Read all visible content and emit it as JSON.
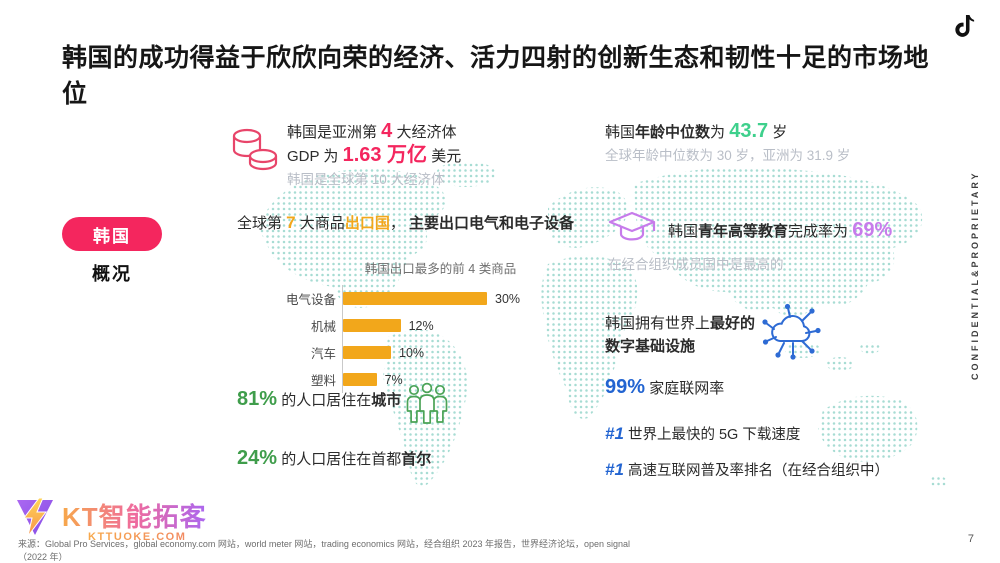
{
  "colors": {
    "pink": "#F4265E",
    "yellow": "#F2A71B",
    "mint": "#3ED08C",
    "green": "#3F9D4B",
    "purple": "#C77BEB",
    "blue": "#2264D1",
    "map-dot": "#a7dcd3"
  },
  "slide": {
    "title": "韩国的成功得益于欣欣向荣的经济、活力四射的创新生态和韧性十足的市场地位",
    "confidential": "CONFIDENTIAL&PROPRIETARY",
    "page_number": "7",
    "source": "来源：Global Pro Services，global economy.com 网站，world meter 网站，trading economics 网站，经合组织 2023 年报告，世界经济论坛，open signal（2022 年）"
  },
  "sidebar": {
    "tag": "韩国",
    "subtitle": "概况"
  },
  "economy": {
    "line1_pre": "韩国是亚洲第 ",
    "line1_hl": "4",
    "line1_post": " 大经济体",
    "line2_pre": "GDP 为 ",
    "line2_hl": "1.63 万亿",
    "line2_post": " 美元",
    "line3": "韩国是全球第 10 大经济体"
  },
  "age": {
    "pre": "韩国",
    "bold": "年龄中位数",
    "mid": "为 ",
    "hl": "43.7",
    "post": " 岁",
    "sub": "全球年龄中位数为 30 岁，亚洲为 31.9 岁"
  },
  "export_line": {
    "pre": "全球第 ",
    "hl_num": "7",
    "mid": " 大商品",
    "hl_word": "出口国",
    "comma": "， ",
    "bold": "主要出口电气和电子设备"
  },
  "chart_data": {
    "type": "bar",
    "orientation": "horizontal",
    "title": "韩国出口最多的前 4 类商品",
    "categories": [
      "电气设备",
      "机械",
      "汽车",
      "塑料"
    ],
    "values": [
      30,
      12,
      10,
      7
    ],
    "value_labels": [
      "30%",
      "12%",
      "10%",
      "7%"
    ],
    "xlim": [
      0,
      30
    ],
    "bar_color": "#F2A71B",
    "grid": false,
    "legend": "none"
  },
  "population": {
    "urban_hl": "81%",
    "urban_mid": " 的人口居住在",
    "urban_bold": "城市",
    "capital_hl": "24%",
    "capital_mid": " 的人口居住在首都",
    "capital_bold": "首尔"
  },
  "education": {
    "pre": "韩国",
    "bold": "青年高等教育",
    "mid": "完成率为 ",
    "hl": "69%",
    "sub": "在经合组织成员国中是最高的"
  },
  "infrastructure": {
    "line1_pre": "韩国拥有世界上",
    "line1_bold": "最好的",
    "line2_bold": "数字基础设施",
    "net_hl": "99%",
    "net_text": " 家庭联网率",
    "rank1_hl": "#1",
    "rank1_text": " 世界上最快的 5G 下载速度",
    "rank2_hl": "#1",
    "rank2_text": " 高速互联网普及率排名（在经合组织中）"
  },
  "watermark": {
    "name": "KT智能拓客",
    "url": "KTTUOKE.COM"
  },
  "icons": {
    "coins": "coins-icon",
    "graduation_cap": "graduation-cap-icon",
    "people": "people-group-icon",
    "cloud_network": "cloud-network-icon",
    "tiktok": "tiktok-note-icon",
    "lightning": "lightning-triangle-icon"
  }
}
